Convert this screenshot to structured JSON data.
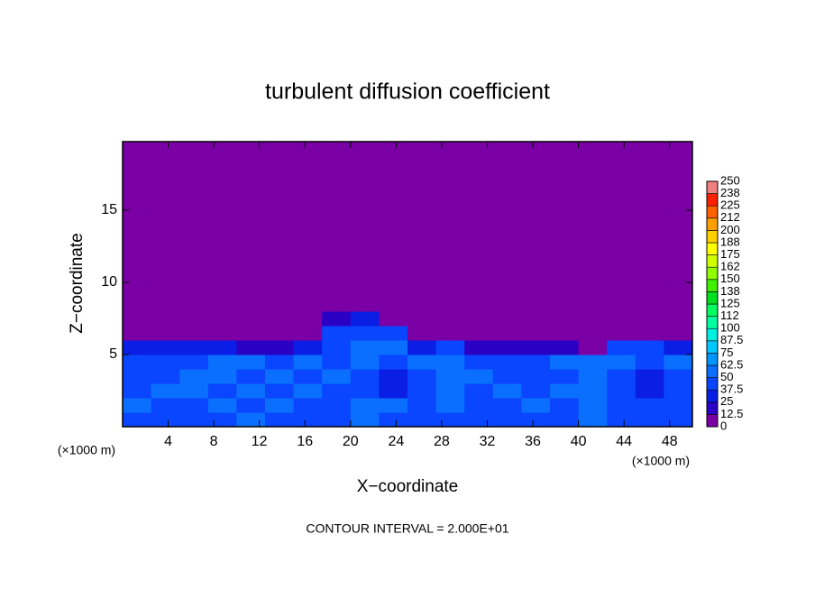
{
  "chart_data": {
    "type": "contour",
    "title": "turbulent diffusion coefficient",
    "x_label": "X−coordinate",
    "y_label": "Z−coordinate",
    "x_unit": "(×1000 m)",
    "x_unit_right": "(×1000 m)",
    "note": "CONTOUR INTERVAL = 2.000E+01",
    "xlim": [
      0,
      50
    ],
    "xticks": [
      4,
      8,
      12,
      16,
      20,
      24,
      28,
      32,
      36,
      40,
      44,
      48
    ],
    "ylim": [
      0,
      19.75
    ],
    "yticks": [
      5,
      10,
      15
    ],
    "x_edges": [
      0,
      2.5,
      5,
      7.5,
      10,
      12.5,
      15,
      17.5,
      20,
      22.5,
      25,
      27.5,
      30,
      32.5,
      35,
      37.5,
      40,
      42.5,
      45,
      47.5,
      50
    ],
    "y_edges": [
      0,
      1,
      2,
      3,
      4,
      5,
      6,
      7,
      8,
      19.75
    ],
    "z": [
      [
        45,
        40,
        45,
        40,
        50,
        45,
        40,
        45,
        50,
        45,
        40,
        40,
        45,
        45,
        40,
        45,
        50,
        45,
        40,
        45
      ],
      [
        50,
        45,
        40,
        55,
        45,
        50,
        45,
        40,
        55,
        50,
        45,
        50,
        45,
        45,
        50,
        45,
        55,
        45,
        40,
        45
      ],
      [
        45,
        50,
        55,
        45,
        50,
        45,
        50,
        45,
        40,
        35,
        45,
        50,
        45,
        55,
        45,
        50,
        55,
        40,
        35,
        40
      ],
      [
        40,
        45,
        50,
        55,
        45,
        50,
        45,
        55,
        45,
        35,
        45,
        55,
        50,
        45,
        40,
        45,
        50,
        45,
        30,
        45
      ],
      [
        45,
        40,
        45,
        50,
        55,
        45,
        55,
        45,
        60,
        45,
        55,
        50,
        45,
        40,
        45,
        50,
        55,
        50,
        45,
        50
      ],
      [
        35,
        30,
        25,
        30,
        20,
        15,
        35,
        40,
        55,
        60,
        30,
        40,
        20,
        15,
        20,
        15,
        10,
        45,
        40,
        30
      ],
      [
        5,
        5,
        0,
        5,
        0,
        0,
        10,
        45,
        45,
        40,
        5,
        5,
        0,
        0,
        5,
        0,
        0,
        0,
        5,
        0
      ],
      [
        0,
        0,
        0,
        0,
        0,
        0,
        0,
        20,
        25,
        5,
        0,
        0,
        0,
        0,
        0,
        0,
        0,
        0,
        0,
        0
      ],
      [
        0,
        0,
        0,
        0,
        0,
        0,
        0,
        0,
        0,
        0,
        0,
        0,
        0,
        0,
        0,
        0,
        0,
        0,
        0,
        0
      ]
    ],
    "zlim": [
      0,
      250
    ],
    "zticks": [
      0,
      12.5,
      25,
      37.5,
      50,
      62.5,
      75,
      87.5,
      100,
      {
        "value": 112.5,
        "label": "112"
      },
      125,
      {
        "value": 137.5,
        "label": "138"
      },
      150,
      {
        "value": 162.5,
        "label": "162"
      },
      175,
      {
        "value": 187.5,
        "label": "188"
      },
      200,
      {
        "value": 212.5,
        "label": "212"
      },
      225,
      {
        "value": 237.5,
        "label": "238"
      },
      250
    ],
    "colors": [
      "#7a00a6",
      "#2a00c4",
      "#0a1ee6",
      "#0a46ff",
      "#0a6eff",
      "#0096ff",
      "#00c8ff",
      "#00f0e0",
      "#00ffa0",
      "#00ff60",
      "#00e020",
      "#40f000",
      "#90ff00",
      "#d0ff00",
      "#ffff00",
      "#ffd000",
      "#ffa000",
      "#ff6000",
      "#ff2000",
      "#f08080"
    ]
  }
}
